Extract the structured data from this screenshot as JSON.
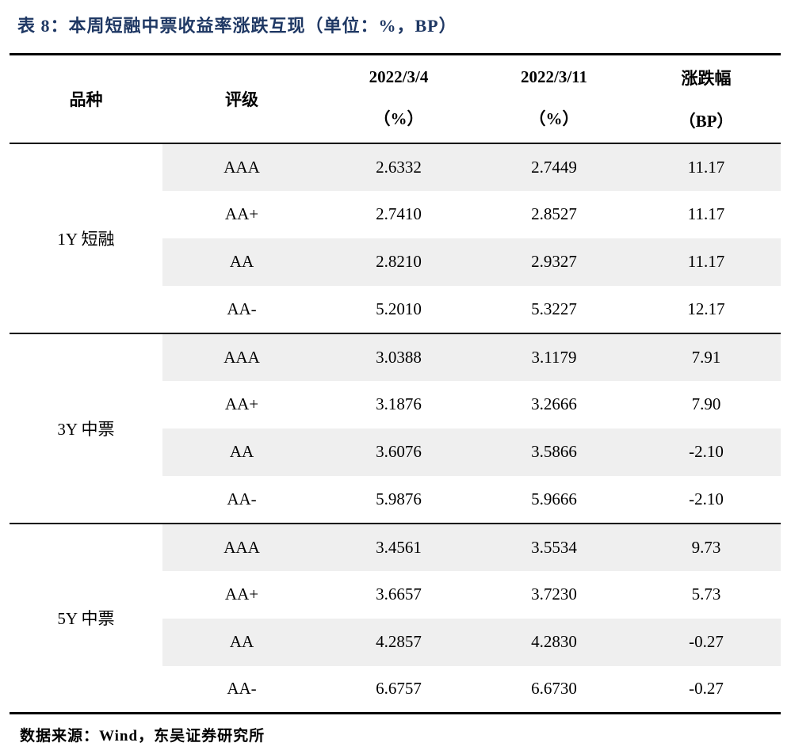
{
  "title": "表 8：本周短融中票收益率涨跌互现（单位：%，BP）",
  "colors": {
    "title_navy": "#1f3864",
    "alt_row_gray": "#efefef",
    "rule_black": "#000000"
  },
  "table": {
    "headers": {
      "product": "品种",
      "rating": "评级",
      "date1_line1": "2022/3/4",
      "date1_line2": "（%）",
      "date2_line1": "2022/3/11",
      "date2_line2": "（%）",
      "change_line1": "涨跌幅",
      "change_line2": "（BP）"
    },
    "sections": [
      {
        "category": "1Y 短融",
        "rows": [
          {
            "rating": "AAA",
            "d1": "2.6332",
            "d2": "2.7449",
            "chg": "11.17"
          },
          {
            "rating": "AA+",
            "d1": "2.7410",
            "d2": "2.8527",
            "chg": "11.17"
          },
          {
            "rating": "AA",
            "d1": "2.8210",
            "d2": "2.9327",
            "chg": "11.17"
          },
          {
            "rating": "AA-",
            "d1": "5.2010",
            "d2": "5.3227",
            "chg": "12.17"
          }
        ]
      },
      {
        "category": "3Y 中票",
        "rows": [
          {
            "rating": "AAA",
            "d1": "3.0388",
            "d2": "3.1179",
            "chg": "7.91"
          },
          {
            "rating": "AA+",
            "d1": "3.1876",
            "d2": "3.2666",
            "chg": "7.90"
          },
          {
            "rating": "AA",
            "d1": "3.6076",
            "d2": "3.5866",
            "chg": "-2.10"
          },
          {
            "rating": "AA-",
            "d1": "5.9876",
            "d2": "5.9666",
            "chg": "-2.10"
          }
        ]
      },
      {
        "category": "5Y 中票",
        "rows": [
          {
            "rating": "AAA",
            "d1": "3.4561",
            "d2": "3.5534",
            "chg": "9.73"
          },
          {
            "rating": "AA+",
            "d1": "3.6657",
            "d2": "3.7230",
            "chg": "5.73"
          },
          {
            "rating": "AA",
            "d1": "4.2857",
            "d2": "4.2830",
            "chg": "-0.27"
          },
          {
            "rating": "AA-",
            "d1": "6.6757",
            "d2": "6.6730",
            "chg": "-0.27"
          }
        ]
      }
    ]
  },
  "footer": {
    "source": "数据来源：Wind，东吴证券研究所"
  }
}
